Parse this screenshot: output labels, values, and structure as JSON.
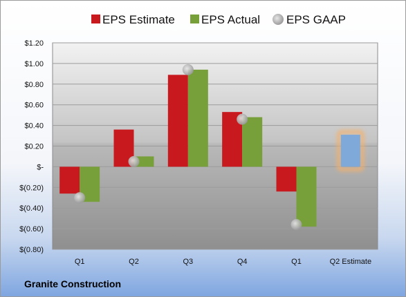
{
  "company": "Granite Construction",
  "chart_data": {
    "type": "bar",
    "categories": [
      "Q1",
      "Q2",
      "Q3",
      "Q4",
      "Q1",
      "Q2 Estimate"
    ],
    "y_ticks": [
      "$1.20",
      "$1.00",
      "$0.80",
      "$0.60",
      "$0.40",
      "$0.20",
      "$-",
      "$(0.20)",
      "$(0.40)",
      "$(0.60)",
      "$(0.80)"
    ],
    "ylim": [
      -0.8,
      1.2
    ],
    "series": [
      {
        "name": "EPS Estimate",
        "color": "#c8191e",
        "values": [
          -0.26,
          0.36,
          0.89,
          0.53,
          -0.24,
          null
        ]
      },
      {
        "name": "EPS Actual",
        "color": "#77a03a",
        "values": [
          -0.34,
          0.1,
          0.94,
          0.48,
          -0.58,
          null
        ]
      },
      {
        "name": "EPS GAAP",
        "color": "#a9a9a9",
        "values": [
          -0.3,
          0.05,
          0.94,
          0.46,
          -0.56,
          null
        ]
      }
    ],
    "estimate_bar": {
      "category_index": 5,
      "value": 0.31,
      "color": "#7fa9d9",
      "glow": "#f5b06a"
    },
    "grid": true,
    "legend": "top"
  }
}
